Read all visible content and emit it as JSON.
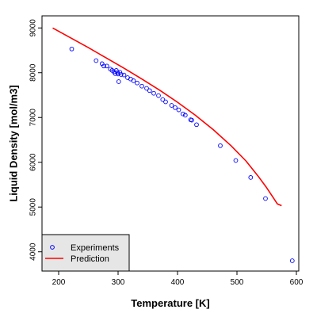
{
  "chart_data": {
    "type": "scatter",
    "xlabel": "Temperature [K]",
    "ylabel": "Liquid Density [mol/m3]",
    "xlim": [
      172,
      604
    ],
    "ylim": [
      3570,
      9270
    ],
    "x_ticks": [
      "200",
      "300",
      "400",
      "500",
      "600"
    ],
    "y_ticks": [
      "4000",
      "5000",
      "6000",
      "7000",
      "8000",
      "9000"
    ],
    "grid": false,
    "legend_position": "bottom-left",
    "series": [
      {
        "name": "Experiments",
        "kind": "points",
        "color": "#0000ff",
        "marker": "open-circle",
        "points": [
          [
            222,
            8530
          ],
          [
            263,
            8270
          ],
          [
            273,
            8200
          ],
          [
            276,
            8150
          ],
          [
            281,
            8150
          ],
          [
            287,
            8080
          ],
          [
            290,
            8050
          ],
          [
            293,
            8020
          ],
          [
            295,
            7980
          ],
          [
            297,
            8050
          ],
          [
            299,
            8000
          ],
          [
            300,
            7970
          ],
          [
            301,
            7800
          ],
          [
            303,
            8010
          ],
          [
            305,
            7960
          ],
          [
            310,
            7950
          ],
          [
            316,
            7890
          ],
          [
            321,
            7860
          ],
          [
            326,
            7820
          ],
          [
            332,
            7770
          ],
          [
            340,
            7700
          ],
          [
            348,
            7650
          ],
          [
            353,
            7600
          ],
          [
            360,
            7540
          ],
          [
            368,
            7490
          ],
          [
            375,
            7400
          ],
          [
            380,
            7350
          ],
          [
            390,
            7270
          ],
          [
            396,
            7220
          ],
          [
            402,
            7170
          ],
          [
            409,
            7080
          ],
          [
            413,
            7050
          ],
          [
            422,
            6950
          ],
          [
            424,
            6940
          ],
          [
            432,
            6840
          ],
          [
            472,
            6370
          ],
          [
            498,
            6040
          ],
          [
            523,
            5660
          ],
          [
            548,
            5190
          ],
          [
            593,
            3800
          ]
        ]
      },
      {
        "name": "Prediction",
        "kind": "line",
        "color": "#ff0000",
        "points": [
          [
            190,
            9000
          ],
          [
            220,
            8780
          ],
          [
            250,
            8560
          ],
          [
            280,
            8330
          ],
          [
            310,
            8100
          ],
          [
            340,
            7860
          ],
          [
            370,
            7610
          ],
          [
            400,
            7340
          ],
          [
            430,
            7050
          ],
          [
            460,
            6730
          ],
          [
            490,
            6370
          ],
          [
            515,
            6030
          ],
          [
            535,
            5700
          ],
          [
            550,
            5430
          ],
          [
            560,
            5230
          ],
          [
            568,
            5070
          ],
          [
            575,
            5030
          ]
        ]
      }
    ]
  }
}
